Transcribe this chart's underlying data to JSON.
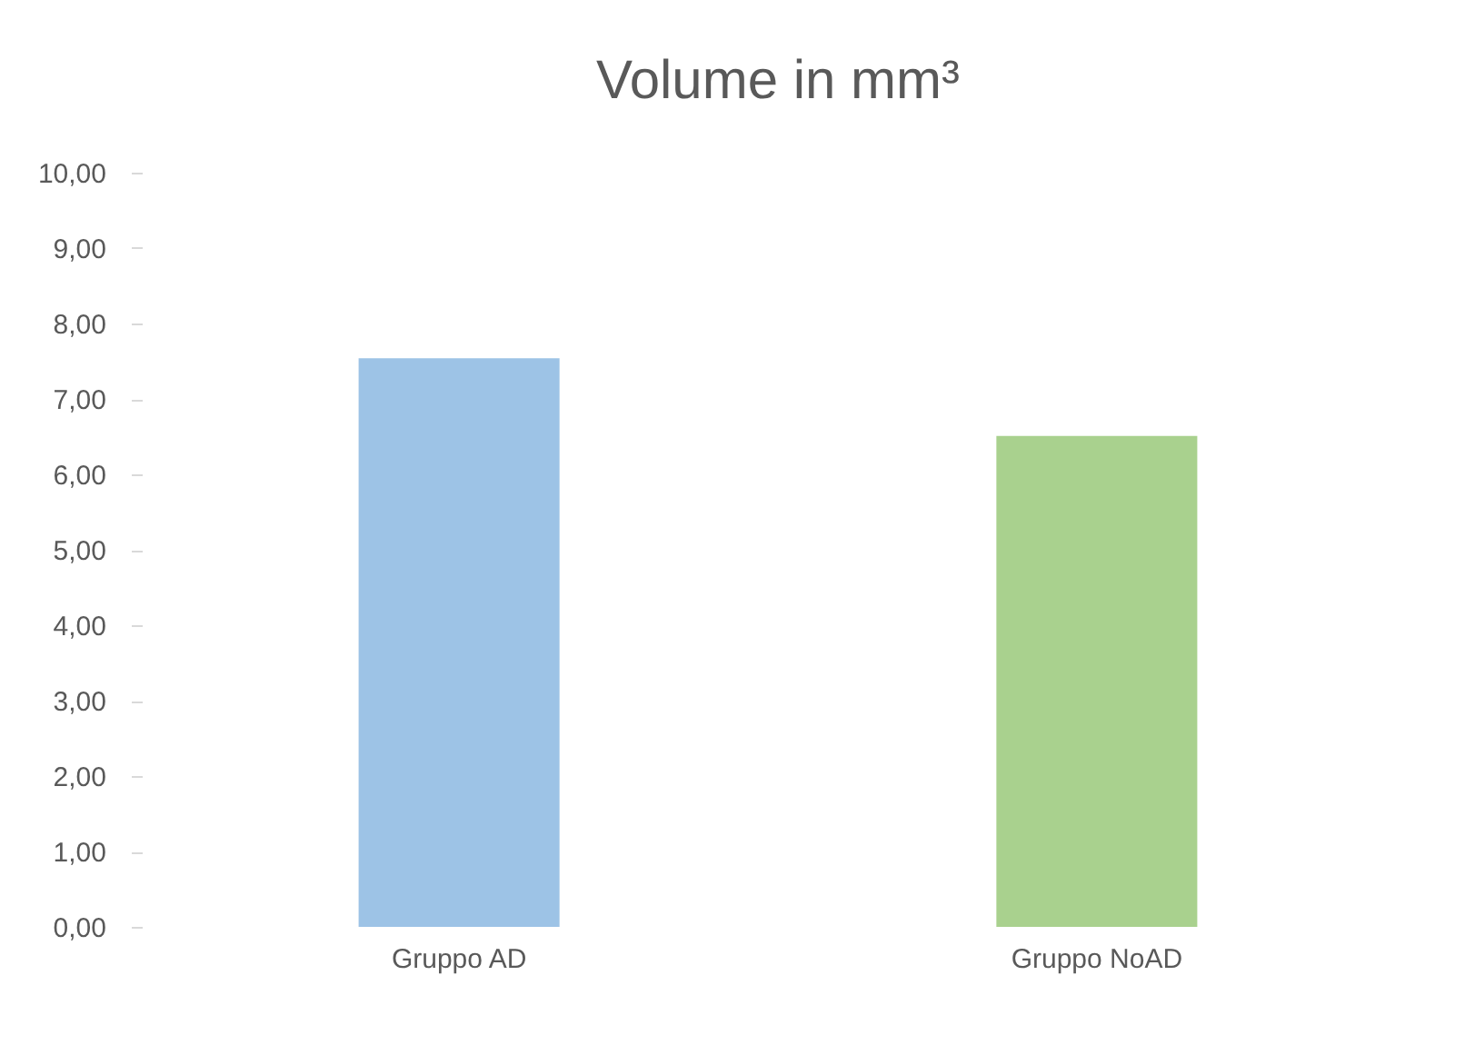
{
  "chart_data": {
    "type": "bar",
    "title": "Volume in mm³",
    "categories": [
      "Gruppo AD",
      "Gruppo NoAD"
    ],
    "values": [
      7.54,
      6.51
    ],
    "colors": [
      "#9dc3e6",
      "#a9d18e"
    ],
    "ylim": [
      0,
      10
    ],
    "yticks": [
      {
        "value": 0,
        "label": "0,00"
      },
      {
        "value": 1,
        "label": "1,00"
      },
      {
        "value": 2,
        "label": "2,00"
      },
      {
        "value": 3,
        "label": "3,00"
      },
      {
        "value": 4,
        "label": "4,00"
      },
      {
        "value": 5,
        "label": "5,00"
      },
      {
        "value": 6,
        "label": "6,00"
      },
      {
        "value": 7,
        "label": "7,00"
      },
      {
        "value": 8,
        "label": "8,00"
      },
      {
        "value": 9,
        "label": "9,00"
      },
      {
        "value": 10,
        "label": "10,00"
      }
    ],
    "grid": false
  }
}
